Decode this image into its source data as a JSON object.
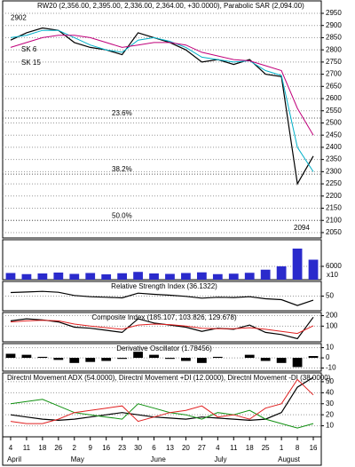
{
  "chart_data": [
    {
      "type": "line",
      "title": "RW20 (2,356.00, 2,395.00, 2,336.00, 2,364.00, +30.0000), Parabolic SAR (2,094.00)",
      "series": [
        {
          "color": "#000000",
          "values": [
            2840,
            2870,
            2890,
            2880,
            2830,
            2810,
            2800,
            2780,
            2870,
            2850,
            2830,
            2800,
            2750,
            2760,
            2740,
            2760,
            2700,
            2690,
            2250,
            2364
          ]
        },
        {
          "name": "SK 6",
          "color": "#00b0c8",
          "values": [
            2850,
            2860,
            2880,
            2880,
            2850,
            2820,
            2800,
            2790,
            2840,
            2850,
            2835,
            2810,
            2770,
            2760,
            2750,
            2755,
            2715,
            2695,
            2400,
            2300
          ]
        },
        {
          "name": "SK 15",
          "color": "#c0007a",
          "values": [
            2810,
            2830,
            2850,
            2860,
            2860,
            2850,
            2830,
            2810,
            2820,
            2830,
            2830,
            2820,
            2790,
            2775,
            2760,
            2755,
            2735,
            2715,
            2560,
            2450
          ]
        }
      ],
      "hlines": [
        {
          "label": "23.6%",
          "value": 2520
        },
        {
          "label": "38.2%",
          "value": 2290
        },
        {
          "label": "50.0%",
          "value": 2100
        }
      ],
      "high": 2902,
      "low": 2094,
      "ylim": [
        2028,
        3001
      ],
      "yticks": [
        2050,
        2100,
        2150,
        2200,
        2250,
        2300,
        2350,
        2400,
        2450,
        2500,
        2550,
        2600,
        2650,
        2700,
        2750,
        2800,
        2850,
        2900,
        2950
      ]
    },
    {
      "type": "bar",
      "unit_label": "x10",
      "series": [
        {
          "color": "#2a2acc",
          "values": [
            3000,
            2500,
            2800,
            3200,
            2600,
            3000,
            2400,
            2900,
            3500,
            2800,
            2600,
            3000,
            3300,
            2500,
            2700,
            3100,
            4500,
            6000,
            14000,
            9000
          ]
        }
      ],
      "ylim": [
        0,
        18000
      ],
      "yticks": [
        6000
      ]
    },
    {
      "type": "line",
      "title": "Relative Strength Index (36.1322)",
      "series": [
        {
          "color": "#000000",
          "values": [
            62,
            64,
            66,
            63,
            52,
            48,
            46,
            44,
            60,
            56,
            53,
            49,
            43,
            46,
            45,
            48,
            41,
            38,
            18,
            36
          ]
        }
      ],
      "ylim": [
        0,
        100
      ],
      "yticks": [
        50
      ]
    },
    {
      "type": "line",
      "title": "Composite Index (185.107, 103.826, 129.678)",
      "series": [
        {
          "color": "#000000",
          "values": [
            150,
            170,
            160,
            140,
            90,
            80,
            60,
            40,
            170,
            130,
            110,
            90,
            50,
            80,
            70,
            110,
            40,
            20,
            -20,
            185
          ]
        },
        {
          "color": "#e02020",
          "values": [
            140,
            150,
            155,
            150,
            120,
            100,
            85,
            70,
            110,
            120,
            115,
            100,
            80,
            75,
            75,
            85,
            70,
            50,
            30,
            104
          ]
        }
      ],
      "ylim": [
        -50,
        230
      ],
      "yticks": [
        200,
        100
      ]
    },
    {
      "type": "bar",
      "title": "Derivative Oscillator (1.78456)",
      "series": [
        {
          "color": "#000000",
          "values": [
            4,
            3,
            1,
            -2,
            -5,
            -4,
            -3,
            -1,
            6,
            3,
            -1,
            -3,
            -5,
            1,
            0,
            3,
            -3,
            -5,
            -9,
            1.78
          ]
        }
      ],
      "ylim": [
        -13,
        14
      ],
      "yticks": [
        10,
        0,
        -10
      ]
    },
    {
      "type": "line",
      "title": "Directnl Movement ADX (54.0000), Directnl Movement +DI (12.0000), Directnl Movement -DI (38.0000)",
      "categories": [
        "4",
        "11",
        "18",
        "26",
        "2",
        "9",
        "16",
        "23",
        "30",
        "6",
        "13",
        "20",
        "27",
        "4",
        "11",
        "18",
        "25",
        "1",
        "8",
        "16"
      ],
      "months": [
        "April",
        "May",
        "June",
        "July",
        "August"
      ],
      "series": [
        {
          "color": "#000000",
          "values": [
            20,
            18,
            16,
            15,
            16,
            18,
            20,
            22,
            20,
            18,
            17,
            16,
            18,
            17,
            16,
            15,
            16,
            22,
            45,
            54
          ]
        },
        {
          "color": "#109010",
          "values": [
            30,
            32,
            34,
            28,
            22,
            20,
            18,
            16,
            30,
            26,
            22,
            20,
            16,
            22,
            20,
            24,
            16,
            12,
            8,
            12
          ]
        },
        {
          "color": "#e02020",
          "values": [
            14,
            12,
            12,
            16,
            22,
            24,
            26,
            28,
            14,
            18,
            22,
            24,
            28,
            18,
            20,
            16,
            26,
            30,
            52,
            38
          ]
        }
      ],
      "ylim": [
        0,
        58
      ],
      "yticks": [
        10,
        20,
        30,
        40,
        50
      ]
    }
  ]
}
